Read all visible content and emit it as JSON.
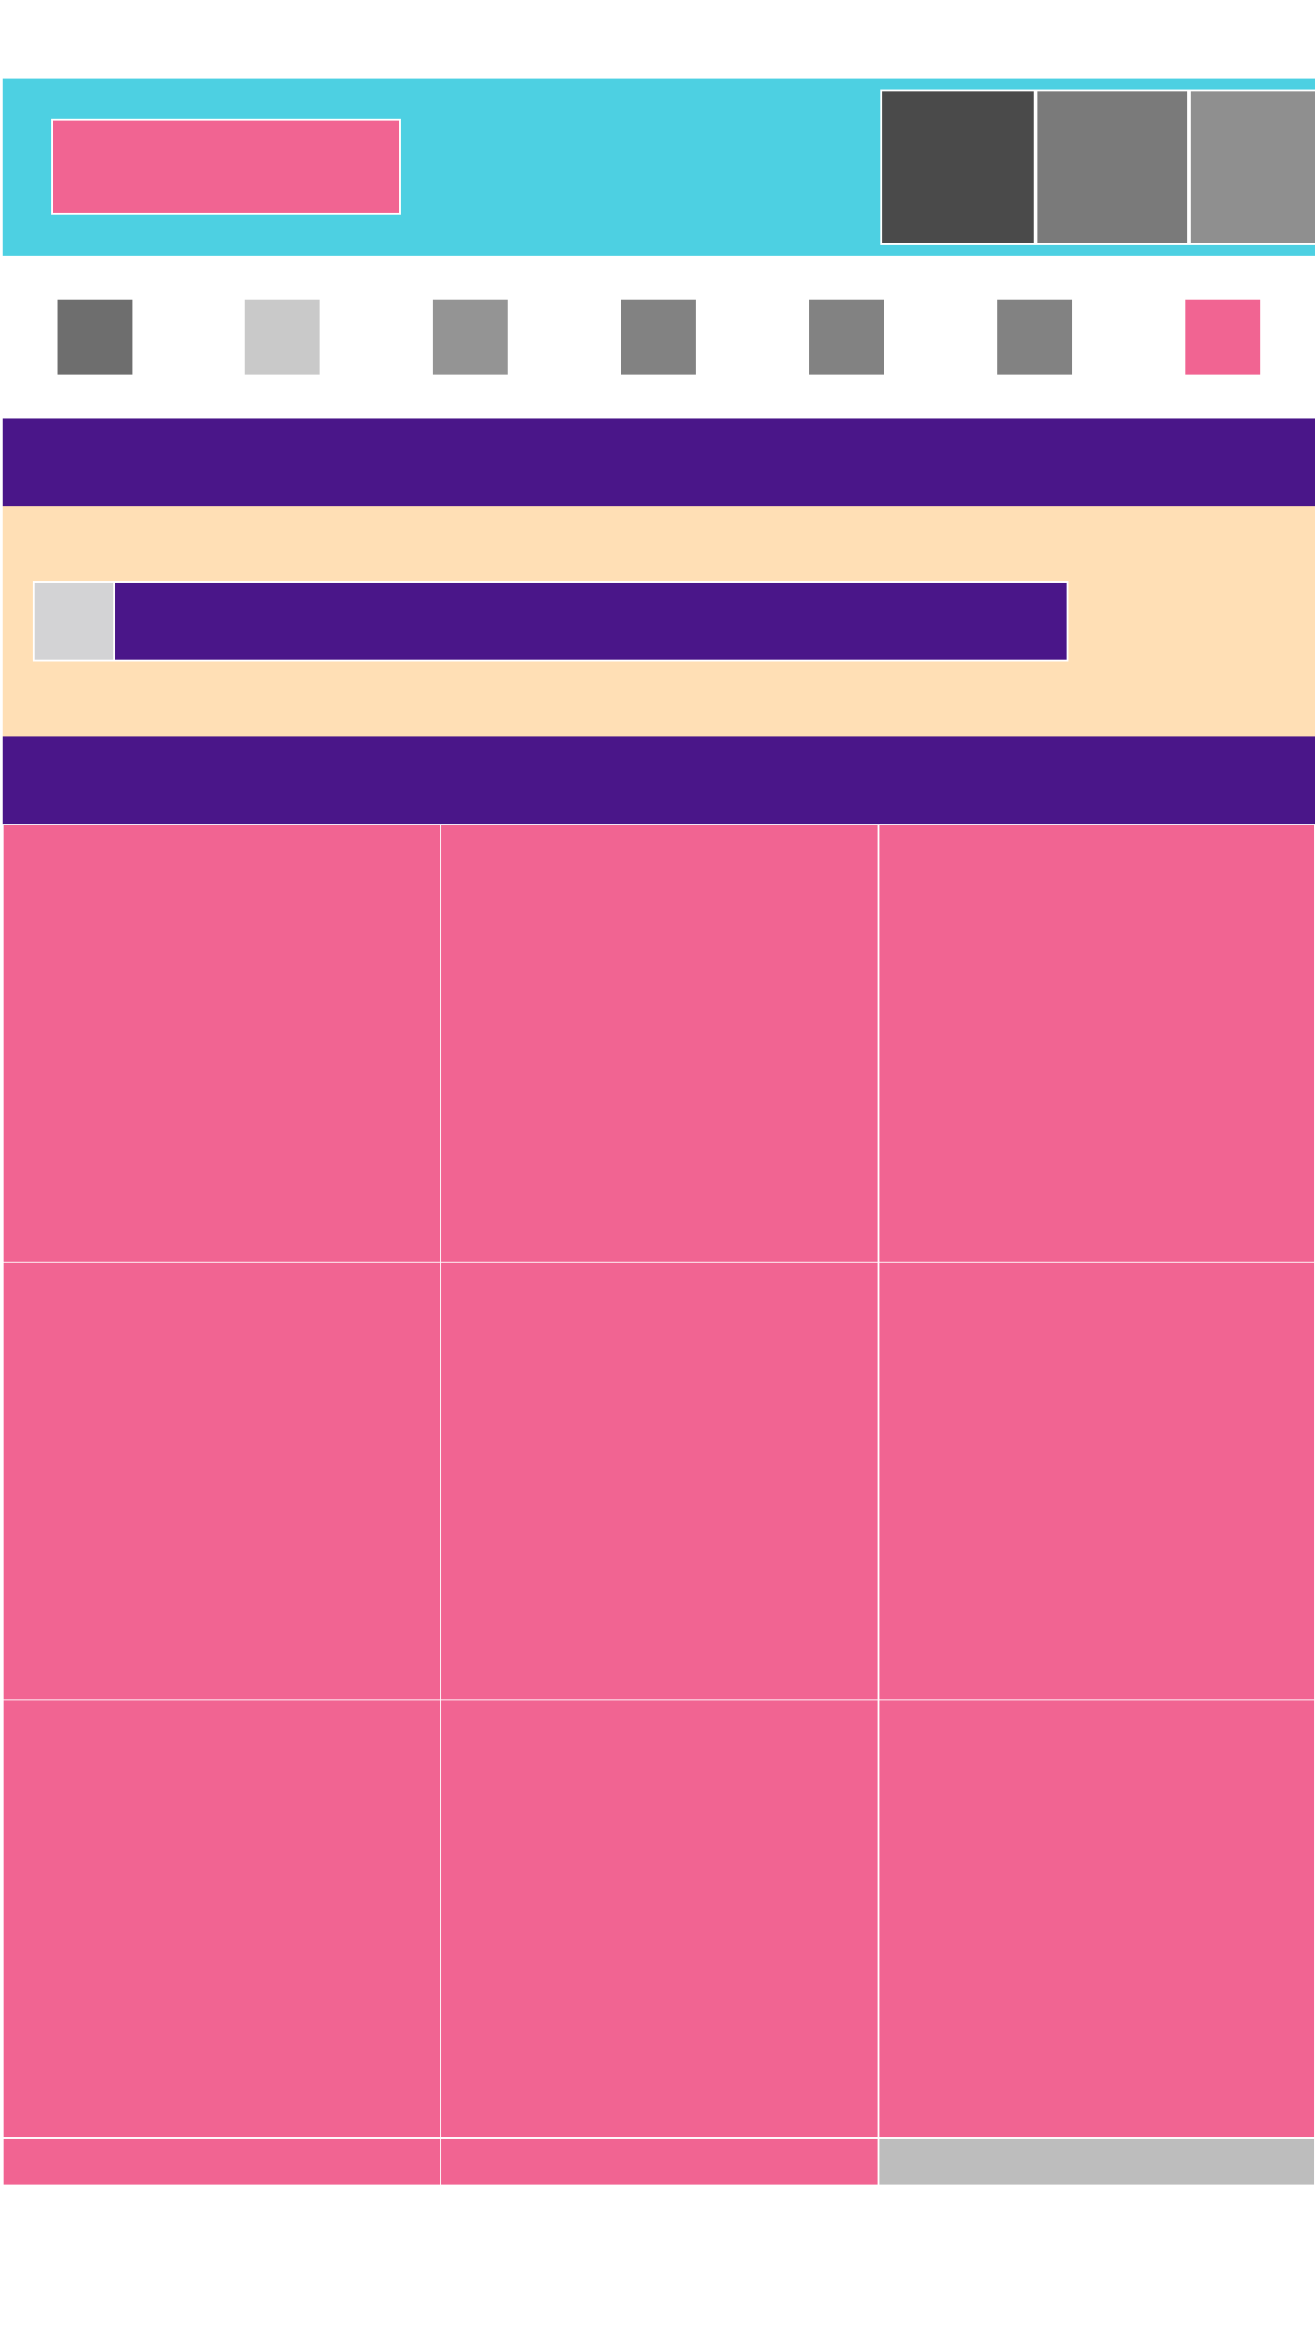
{
  "colors": {
    "header_bg": "#4dd0e2",
    "accent_pink": "#f16492",
    "deep_purple": "#4a1689",
    "peach": "#ffdfb5",
    "page_bg": "#ffffff",
    "header_tiles": [
      "#4a4a4a",
      "#7a7a7a",
      "#8f8f8f"
    ],
    "nav_items": [
      "#6e6e6e",
      "#c9c9c9",
      "#949494",
      "#828282",
      "#828282",
      "#828282",
      "#f16492"
    ],
    "search_icon_bg": "#d3d3d5",
    "grid_placeholder": "#bdbdbd"
  },
  "header": {
    "tiles": [
      {
        "icon": "tile-icon-1"
      },
      {
        "icon": "tile-icon-2"
      },
      {
        "icon": "tile-icon-3"
      }
    ]
  },
  "nav": {
    "items": [
      {
        "icon": "nav-icon-1"
      },
      {
        "icon": "nav-icon-2"
      },
      {
        "icon": "nav-icon-3"
      },
      {
        "icon": "nav-icon-4"
      },
      {
        "icon": "nav-icon-5"
      },
      {
        "icon": "nav-icon-6"
      },
      {
        "icon": "nav-icon-7",
        "active": true
      }
    ]
  },
  "search": {
    "icon": "search-icon",
    "value": "",
    "placeholder": ""
  },
  "grid": {
    "columns": 3,
    "rows": [
      [
        "#f16492",
        "#f16492",
        "#f16492"
      ],
      [
        "#f16492",
        "#f16492",
        "#f16492"
      ],
      [
        "#f16492",
        "#f16492",
        "#f16492"
      ],
      [
        "#f16492",
        "#f16492",
        "#bdbdbd"
      ]
    ]
  }
}
